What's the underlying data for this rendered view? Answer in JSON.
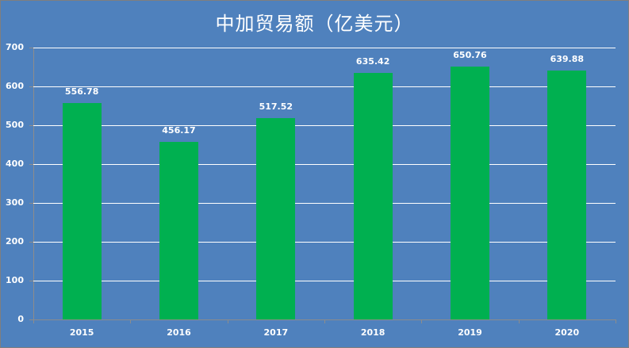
{
  "chart_data": {
    "type": "bar",
    "title": "中加贸易额（亿美元）",
    "categories": [
      "2015",
      "2016",
      "2017",
      "2018",
      "2019",
      "2020"
    ],
    "values": [
      556.78,
      456.17,
      517.52,
      635.42,
      650.76,
      639.88
    ],
    "value_labels": [
      "556.78",
      "456.17",
      "517.52",
      "635.42",
      "650.76",
      "639.88"
    ],
    "xlabel": "",
    "ylabel": "",
    "ylim": [
      0,
      700
    ],
    "yticks": [
      "0",
      "100",
      "200",
      "300",
      "400",
      "500",
      "600",
      "700"
    ],
    "grid": true,
    "legend": "none",
    "colors": {
      "bar": "#00B050",
      "background": "#4F81BD",
      "text": "#FFFFFF"
    }
  }
}
